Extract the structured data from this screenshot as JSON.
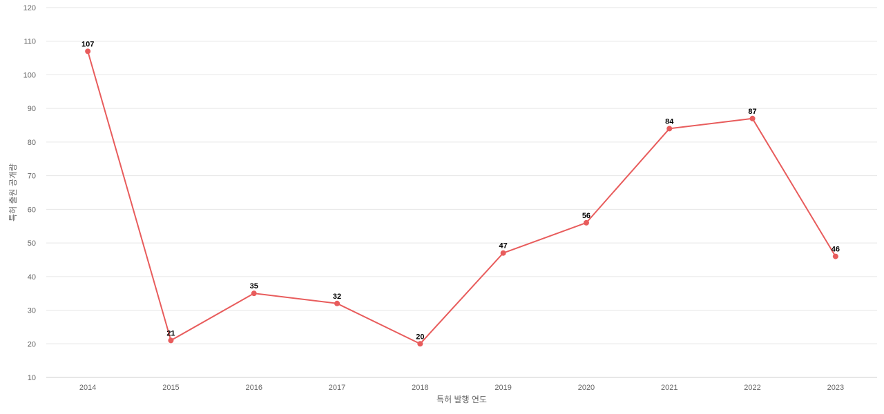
{
  "chart_data": {
    "type": "line",
    "title": "",
    "xlabel": "특허 발행 연도",
    "ylabel": "특허 출원 공개량",
    "x": [
      "2014",
      "2015",
      "2016",
      "2017",
      "2018",
      "2019",
      "2020",
      "2021",
      "2022",
      "2023"
    ],
    "series": [
      {
        "values": [
          107,
          21,
          35,
          32,
          20,
          47,
          56,
          84,
          87,
          46
        ]
      }
    ],
    "ylim": [
      10,
      120
    ],
    "yticks": [
      10,
      20,
      30,
      40,
      50,
      60,
      70,
      80,
      90,
      100,
      110,
      120
    ],
    "grid": true,
    "data_labels": true,
    "line_color": "#e85c5c"
  }
}
